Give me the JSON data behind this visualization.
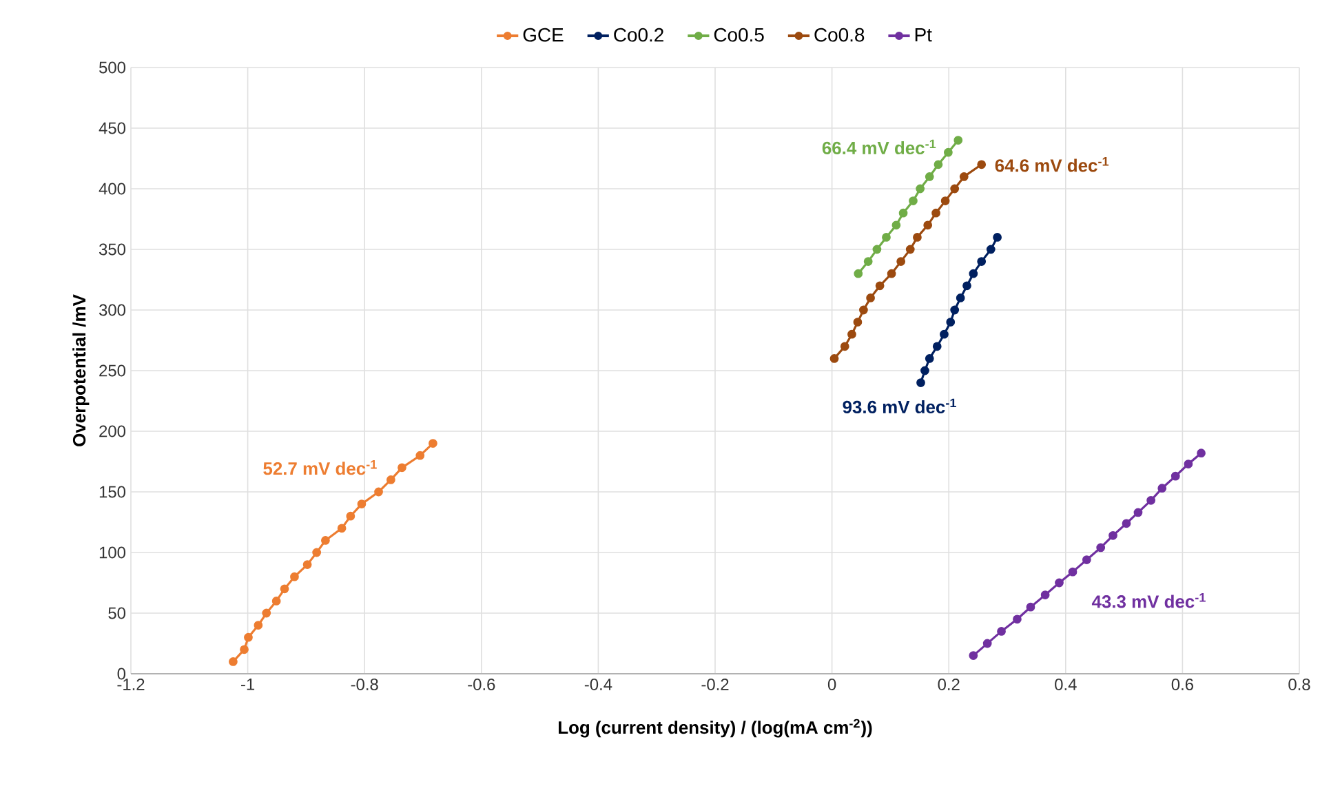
{
  "chart_data": {
    "type": "line",
    "xlabel": "Log (current density) / (log(mA cm$^{-2}$))",
    "ylabel": "Overpotential /mV",
    "xlim": [
      -1.2,
      0.8
    ],
    "xticks": [
      -1.2,
      -1,
      -0.8,
      -0.6,
      -0.4,
      -0.2,
      0,
      0.2,
      0.4,
      0.6,
      0.8
    ],
    "ylim": [
      0,
      500
    ],
    "yticks": [
      0,
      50,
      100,
      150,
      200,
      250,
      300,
      350,
      400,
      450,
      500
    ],
    "grid": true,
    "legend": "top",
    "marker": "circle",
    "line_style": "solid",
    "series": [
      {
        "name": "GCE",
        "color": "#ed7d31",
        "x": [
          -1.025,
          -1.006,
          -0.999,
          -0.982,
          -0.968,
          -0.951,
          -0.937,
          -0.92,
          -0.898,
          -0.882,
          -0.867,
          -0.839,
          -0.824,
          -0.805,
          -0.776,
          -0.755,
          -0.736,
          -0.705,
          -0.683
        ],
        "values": [
          10,
          20,
          30,
          40,
          50,
          60,
          70,
          80,
          90,
          100,
          110,
          120,
          130,
          140,
          150,
          160,
          170,
          180,
          190
        ]
      },
      {
        "name": "Co0.2",
        "color": "#002060",
        "x": [
          0.152,
          0.159,
          0.167,
          0.18,
          0.192,
          0.203,
          0.21,
          0.22,
          0.231,
          0.242,
          0.256,
          0.272,
          0.283
        ],
        "values": [
          240,
          250,
          260,
          270,
          280,
          290,
          300,
          310,
          320,
          330,
          340,
          350,
          360
        ]
      },
      {
        "name": "Co0.5",
        "color": "#70ad47",
        "x": [
          0.045,
          0.062,
          0.077,
          0.093,
          0.11,
          0.122,
          0.139,
          0.151,
          0.167,
          0.182,
          0.199,
          0.216
        ],
        "values": [
          330,
          340,
          350,
          360,
          370,
          380,
          390,
          400,
          410,
          420,
          430,
          440
        ]
      },
      {
        "name": "Co0.8",
        "color": "#9c4a0f",
        "x": [
          0.004,
          0.022,
          0.034,
          0.044,
          0.054,
          0.066,
          0.082,
          0.102,
          0.118,
          0.134,
          0.146,
          0.164,
          0.178,
          0.194,
          0.21,
          0.226,
          0.256
        ],
        "values": [
          260,
          270,
          280,
          290,
          300,
          310,
          320,
          330,
          340,
          350,
          360,
          370,
          380,
          390,
          400,
          410,
          420
        ]
      },
      {
        "name": "Pt",
        "color": "#7030a0",
        "x": [
          0.242,
          0.266,
          0.29,
          0.317,
          0.34,
          0.365,
          0.389,
          0.412,
          0.436,
          0.46,
          0.481,
          0.504,
          0.524,
          0.546,
          0.565,
          0.588,
          0.61,
          0.632
        ],
        "values": [
          15,
          25,
          35,
          45,
          55,
          65,
          75,
          84,
          94,
          104,
          114,
          124,
          133,
          143,
          153,
          163,
          173,
          182
        ]
      }
    ],
    "annotations": [
      "52.7 mV dec$^{-1}$",
      "93.6 mV dec$^{-1}$",
      "66.4 mV dec$^{-1}$",
      "64.6 mV dec$^{-1}$",
      "43.3 mV dec$^{-1}$"
    ]
  }
}
